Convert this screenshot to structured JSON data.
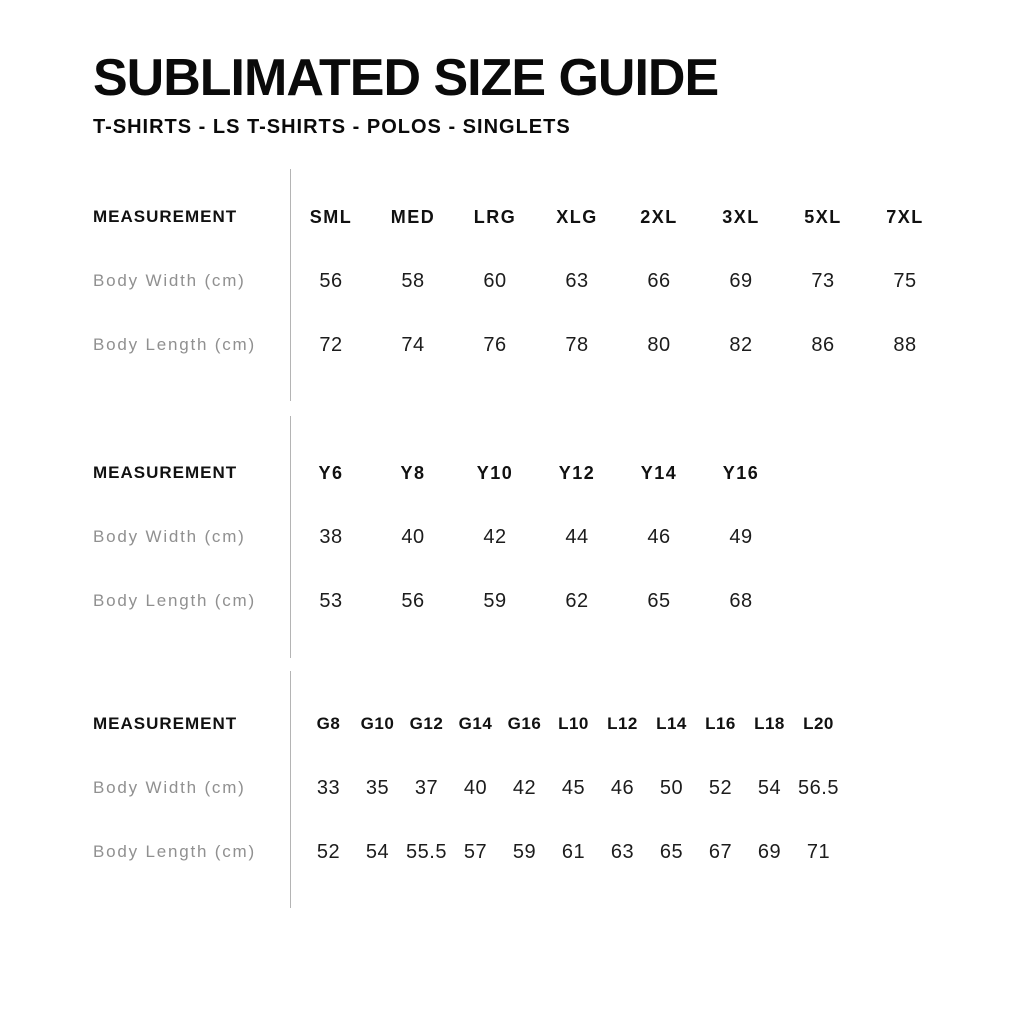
{
  "page": {
    "title": "SUBLIMATED SIZE GUIDE",
    "subtitle": "T-SHIRTS - LS T-SHIRTS - POLOS - SINGLETS"
  },
  "colors": {
    "divider": "#b4b4b4",
    "row_label_gray": "#909090",
    "text_black": "#111111"
  },
  "tables": [
    {
      "name": "adult-sizes",
      "header_label": "MEASUREMENT",
      "columns": [
        "SML",
        "MED",
        "LRG",
        "XLG",
        "2XL",
        "3XL",
        "5XL",
        "7XL"
      ],
      "rows": [
        {
          "label": "Body Width (cm)",
          "values": [
            "56",
            "58",
            "60",
            "63",
            "66",
            "69",
            "73",
            "75"
          ]
        },
        {
          "label": "Body Length (cm)",
          "values": [
            "72",
            "74",
            "76",
            "78",
            "80",
            "82",
            "86",
            "88"
          ]
        }
      ]
    },
    {
      "name": "youth-sizes",
      "header_label": "MEASUREMENT",
      "columns": [
        "Y6",
        "Y8",
        "Y10",
        "Y12",
        "Y14",
        "Y16"
      ],
      "rows": [
        {
          "label": "Body Width (cm)",
          "values": [
            "38",
            "40",
            "42",
            "44",
            "46",
            "49"
          ]
        },
        {
          "label": "Body Length (cm)",
          "values": [
            "53",
            "56",
            "59",
            "62",
            "65",
            "68"
          ]
        }
      ]
    },
    {
      "name": "girls-ladies-sizes",
      "header_label": "MEASUREMENT",
      "columns": [
        "G8",
        "G10",
        "G12",
        "G14",
        "G16",
        "L10",
        "L12",
        "L14",
        "L16",
        "L18",
        "L20"
      ],
      "rows": [
        {
          "label": "Body Width (cm)",
          "values": [
            "33",
            "35",
            "37",
            "40",
            "42",
            "45",
            "46",
            "50",
            "52",
            "54",
            "56.5"
          ]
        },
        {
          "label": "Body Length (cm)",
          "values": [
            "52",
            "54",
            "55.5",
            "57",
            "59",
            "61",
            "63",
            "65",
            "67",
            "69",
            "71"
          ]
        }
      ]
    }
  ]
}
